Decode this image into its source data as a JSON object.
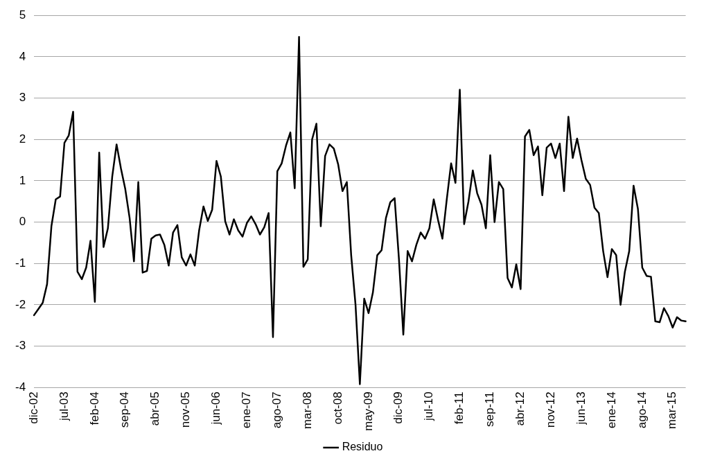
{
  "chart_data": {
    "type": "line",
    "categories": [
      "dic-02",
      null,
      null,
      null,
      null,
      null,
      null,
      "jul-03",
      null,
      null,
      null,
      null,
      null,
      null,
      "feb-04",
      null,
      null,
      null,
      null,
      null,
      null,
      "sep-04",
      null,
      null,
      null,
      null,
      null,
      null,
      "abr-05",
      null,
      null,
      null,
      null,
      null,
      null,
      "nov-05",
      null,
      null,
      null,
      null,
      null,
      null,
      "jun-06",
      null,
      null,
      null,
      null,
      null,
      null,
      "ene-07",
      null,
      null,
      null,
      null,
      null,
      null,
      "ago-07",
      null,
      null,
      null,
      null,
      null,
      null,
      "mar-08",
      null,
      null,
      null,
      null,
      null,
      null,
      "oct-08",
      null,
      null,
      null,
      null,
      null,
      null,
      "may-09",
      null,
      null,
      null,
      null,
      null,
      null,
      "dic-09",
      null,
      null,
      null,
      null,
      null,
      null,
      "jul-10",
      null,
      null,
      null,
      null,
      null,
      null,
      "feb-11",
      null,
      null,
      null,
      null,
      null,
      null,
      "sep-11",
      null,
      null,
      null,
      null,
      null,
      null,
      "abr-12",
      null,
      null,
      null,
      null,
      null,
      null,
      "nov-12",
      null,
      null,
      null,
      null,
      null,
      null,
      "jun-13",
      null,
      null,
      null,
      null,
      null,
      null,
      "ene-14",
      null,
      null,
      null,
      null,
      null,
      null,
      "ago-14",
      null,
      null,
      null,
      null,
      null,
      null,
      "mar-15",
      null,
      null,
      null
    ],
    "series": [
      {
        "name": "Residuo",
        "color": "#000000",
        "values": [
          -2.25,
          -2.1,
          -1.95,
          -1.5,
          -0.1,
          0.55,
          0.62,
          1.92,
          2.1,
          2.67,
          -1.2,
          -1.38,
          -1.1,
          -0.45,
          -1.93,
          1.68,
          -0.6,
          -0.15,
          1.1,
          1.88,
          1.3,
          0.8,
          0.1,
          -0.95,
          0.97,
          -1.22,
          -1.18,
          -0.4,
          -0.32,
          -0.3,
          -0.55,
          -1.05,
          -0.25,
          -0.07,
          -0.85,
          -1.05,
          -0.78,
          -1.05,
          -0.2,
          0.38,
          0.03,
          0.3,
          1.48,
          1.1,
          0.02,
          -0.3,
          0.07,
          -0.2,
          -0.35,
          -0.02,
          0.14,
          -0.05,
          -0.3,
          -0.12,
          0.22,
          -2.78,
          1.23,
          1.42,
          1.85,
          2.17,
          0.82,
          4.48,
          -1.08,
          -0.9,
          2.0,
          2.38,
          -0.1,
          1.6,
          1.88,
          1.78,
          1.4,
          0.75,
          0.97,
          -0.8,
          -2.0,
          -3.92,
          -1.85,
          -2.2,
          -1.7,
          -0.8,
          -0.68,
          0.1,
          0.48,
          0.58,
          -0.9,
          -2.72,
          -0.7,
          -0.95,
          -0.55,
          -0.25,
          -0.4,
          -0.15,
          0.55,
          0.05,
          -0.4,
          0.55,
          1.42,
          0.95,
          3.2,
          -0.05,
          0.5,
          1.25,
          0.7,
          0.42,
          -0.15,
          1.62,
          0.0,
          0.97,
          0.8,
          -1.35,
          -1.58,
          -1.02,
          -1.62,
          2.07,
          2.23,
          1.62,
          1.83,
          0.65,
          1.8,
          1.9,
          1.55,
          1.9,
          0.75,
          2.55,
          1.55,
          2.02,
          1.5,
          1.05,
          0.9,
          0.35,
          0.22,
          -0.7,
          -1.33,
          -0.65,
          -0.8,
          -2.0,
          -1.2,
          -0.7,
          0.88,
          0.32,
          -1.1,
          -1.3,
          -1.32,
          -2.4,
          -2.42,
          -2.08,
          -2.27,
          -2.55,
          -2.3,
          -2.38,
          -2.4
        ]
      }
    ],
    "ylim": [
      -4,
      5
    ],
    "yticks": [
      -4,
      -3,
      -2,
      -1,
      0,
      1,
      2,
      3,
      4,
      5
    ],
    "grid": "y",
    "legend": "bottom",
    "marker": "none",
    "line_style": "solid"
  }
}
